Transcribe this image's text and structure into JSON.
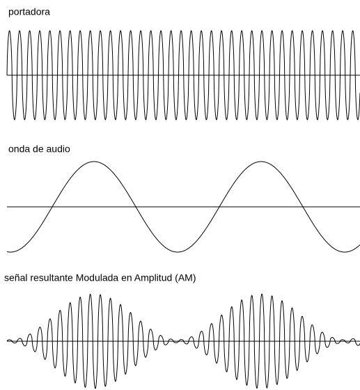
{
  "panels": [
    {
      "label": "portadora"
    },
    {
      "label": "onda de audio"
    },
    {
      "label": "señal resultante Modulada en Amplitud (AM)"
    }
  ]
}
